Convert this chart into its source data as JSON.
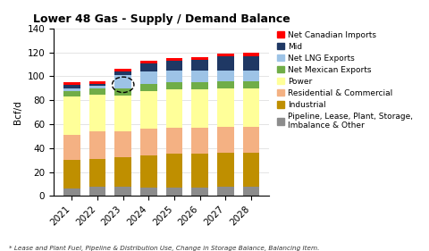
{
  "title": "Lower 48 Gas - Supply / Demand Balance",
  "years": [
    "2021",
    "2022",
    "2023",
    "2024",
    "2025",
    "2026",
    "2027",
    "2028"
  ],
  "ylabel": "Bcf/d",
  "ylim": [
    0,
    140
  ],
  "yticks": [
    0,
    20,
    40,
    60,
    80,
    100,
    120,
    140
  ],
  "footnote": "* Lease and Plant Fuel, Pipeline & Distribution Use, Change in Storage Balance, Balancing Item.",
  "segments": [
    {
      "name": "Pipeline, Lease, Plant, Storage,\nImbalance & Other",
      "values": [
        6,
        8,
        8,
        7,
        7,
        7,
        8,
        8
      ],
      "color": "#8C8C8C"
    },
    {
      "name": "Industrial",
      "values": [
        24,
        23,
        24,
        27,
        28,
        28,
        28,
        28
      ],
      "color": "#BF8F00"
    },
    {
      "name": "Residential & Commercial",
      "values": [
        21,
        23,
        22,
        22,
        22,
        22,
        22,
        22
      ],
      "color": "#F4B183"
    },
    {
      "name": "Power",
      "values": [
        32,
        31,
        30,
        32,
        32,
        32,
        32,
        32
      ],
      "color": "#FFFF99"
    },
    {
      "name": "Net Mexican Exports",
      "values": [
        5,
        5,
        6,
        6,
        6,
        6,
        6,
        6
      ],
      "color": "#70AD47"
    },
    {
      "name": "Net LNG Exports",
      "values": [
        2,
        2,
        11,
        10,
        10,
        10,
        9,
        9
      ],
      "color": "#9DC3E6"
    },
    {
      "name": "Mid",
      "values": [
        3,
        2,
        3,
        7,
        8,
        9,
        12,
        12
      ],
      "color": "#1F3864"
    },
    {
      "name": "Net Canadian Imports",
      "values": [
        2,
        2,
        2,
        2,
        2,
        2,
        2,
        3
      ],
      "color": "#FF0000"
    }
  ],
  "background_color": "#FFFFFF",
  "grid_color": "#D9D9D9",
  "bar_width": 0.65,
  "title_fontsize": 9,
  "label_fontsize": 7.5,
  "legend_fontsize": 6.5
}
